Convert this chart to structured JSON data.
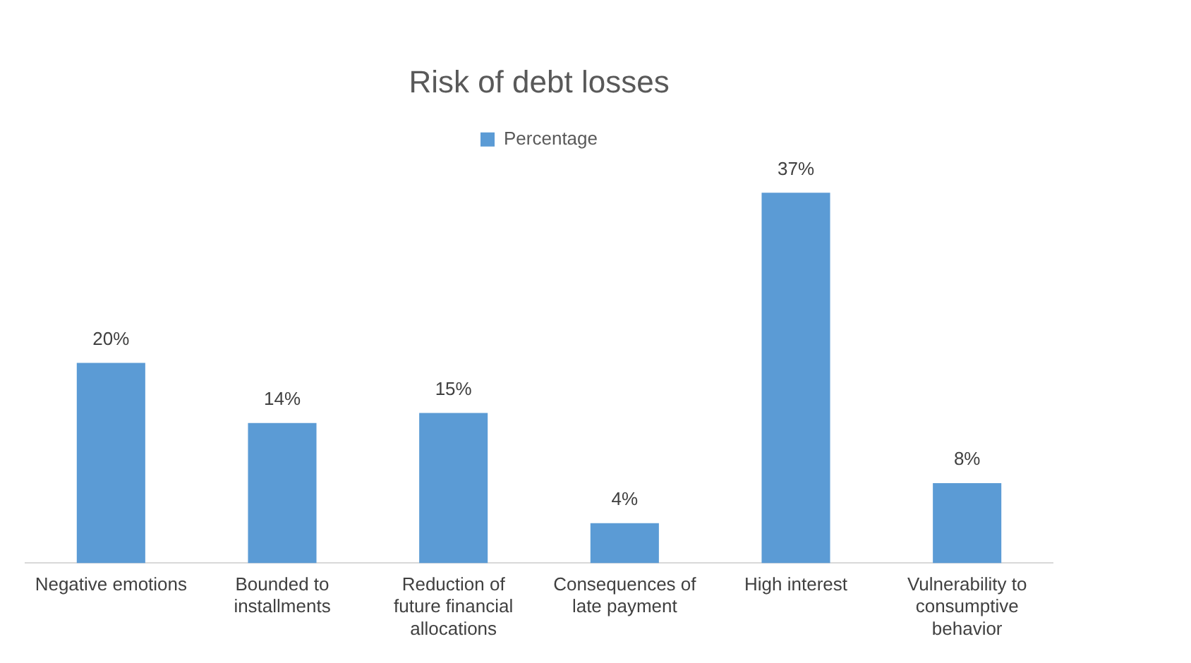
{
  "chart_data": {
    "type": "bar",
    "title": "Risk of debt losses",
    "categories": [
      "Negative emotions",
      "Bounded to installments",
      "Reduction of future financial allocations",
      "Consequences of late payment",
      "High interest",
      "Vulnerability to consumptive behavior"
    ],
    "series": [
      {
        "name": "Percentage",
        "color": "#5b9bd5",
        "values": [
          20,
          14,
          15,
          4,
          37,
          8
        ],
        "value_labels": [
          "20%",
          "14%",
          "15%",
          "4%",
          "37%",
          "8%"
        ]
      }
    ],
    "legend": "top",
    "grid": false
  }
}
